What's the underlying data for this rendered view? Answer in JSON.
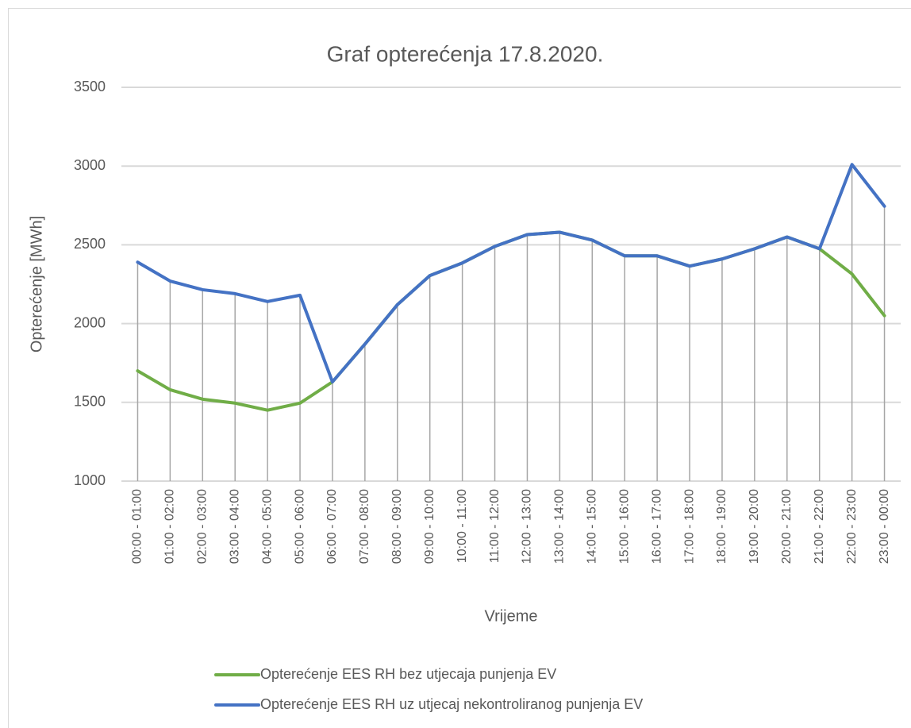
{
  "chart_data": {
    "type": "line",
    "title": "Graf opterećenja 17.8.2020.",
    "xlabel": "Vrijeme",
    "ylabel": "Opterećenje [MWh]",
    "categories": [
      "00:00 - 01:00",
      "01:00 - 02:00",
      "02:00 - 03:00",
      "03:00 - 04:00",
      "04:00 - 05:00",
      "05:00 - 06:00",
      "06:00 - 07:00",
      "07:00 - 08:00",
      "08:00 - 09:00",
      "09:00 - 10:00",
      "10:00 - 11:00",
      "11:00 - 12:00",
      "12:00 - 13:00",
      "13:00 - 14:00",
      "14:00 - 15:00",
      "15:00 - 16:00",
      "16:00 - 17:00",
      "17:00 - 18:00",
      "18:00 - 19:00",
      "19:00 - 20:00",
      "20:00 - 21:00",
      "21:00 - 22:00",
      "22:00 - 23:00",
      "23:00 - 00:00"
    ],
    "series": [
      {
        "name": "Opterećenje EES RH bez utjecaja punjenja EV",
        "color": "#70ad47",
        "values": [
          1700,
          1580,
          1520,
          1495,
          1450,
          1495,
          1630,
          1870,
          2120,
          2305,
          2385,
          2490,
          2565,
          2580,
          2530,
          2430,
          2430,
          2365,
          2410,
          2475,
          2550,
          2475,
          2315,
          2050
        ]
      },
      {
        "name": "Opterećenje EES RH uz utjecaj nekontroliranog punjenja EV",
        "color": "#4472c4",
        "values": [
          2390,
          2270,
          2215,
          2190,
          2140,
          2180,
          1630,
          1870,
          2120,
          2305,
          2385,
          2490,
          2565,
          2580,
          2530,
          2430,
          2430,
          2365,
          2410,
          2475,
          2550,
          2475,
          3010,
          2745
        ]
      }
    ],
    "ylim": [
      1000,
      3500
    ],
    "yticks": [
      1000,
      1500,
      2000,
      2500,
      3000,
      3500
    ],
    "grid": true,
    "drop_lines": true,
    "legend": "bottom"
  }
}
